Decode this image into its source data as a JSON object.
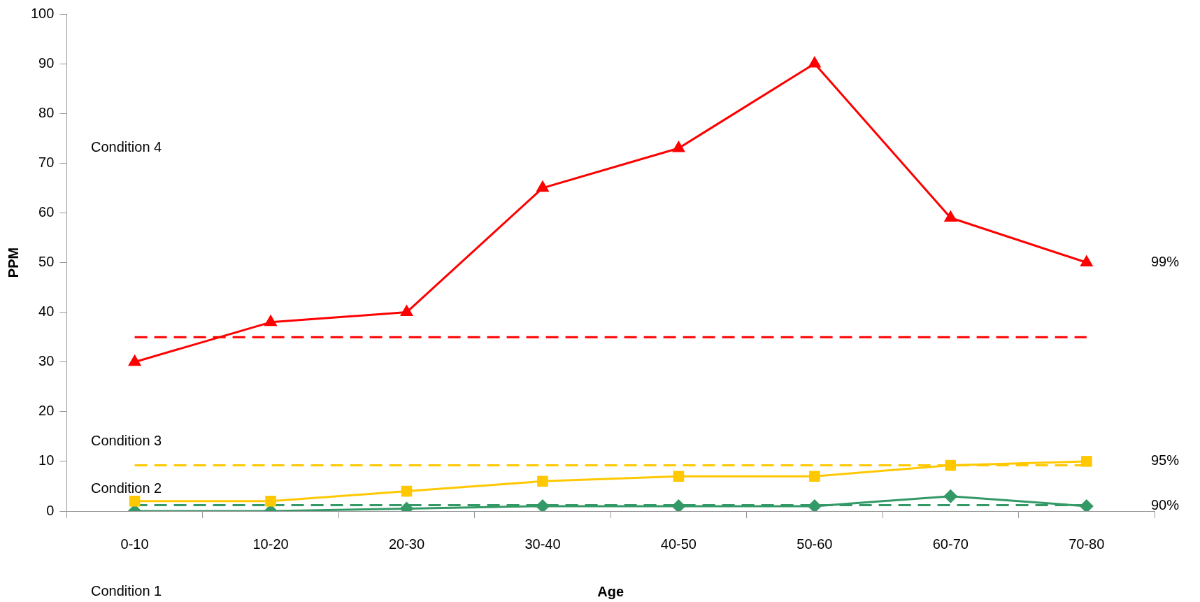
{
  "chart_data": {
    "type": "line",
    "xlabel": "Age",
    "ylabel": "PPM",
    "categories": [
      "0-10",
      "10-20",
      "20-30",
      "30-40",
      "40-50",
      "50-60",
      "60-70",
      "70-80"
    ],
    "ylim": [
      0,
      100
    ],
    "yticks": [
      0,
      10,
      20,
      30,
      40,
      50,
      60,
      70,
      80,
      90,
      100
    ],
    "grid": false,
    "legend": false,
    "line_style": "solid",
    "series": [
      {
        "name": "99%",
        "color": "#ff0000",
        "marker": "triangle",
        "values": [
          30,
          38,
          40,
          65,
          73,
          90,
          59,
          50
        ]
      },
      {
        "name": "95%",
        "color": "#ffc800",
        "marker": "square",
        "values": [
          2,
          2,
          4,
          6,
          7,
          7,
          9.2,
          10
        ]
      },
      {
        "name": "90%",
        "color": "#339966",
        "marker": "diamond",
        "values": [
          0,
          0,
          0.5,
          1,
          1,
          1,
          3,
          1
        ]
      }
    ],
    "ref_lines": [
      {
        "axis": "y",
        "value": 35,
        "color": "#ff0000",
        "line_style": "dashed"
      },
      {
        "axis": "y",
        "value": 9.2,
        "color": "#ffc800",
        "line_style": "dashed"
      },
      {
        "axis": "y",
        "value": 1.2,
        "color": "#339966",
        "line_style": "dashed"
      }
    ],
    "annotations": [
      "Condition 4",
      "Condition 3",
      "Condition 2",
      "Condition 1"
    ]
  }
}
